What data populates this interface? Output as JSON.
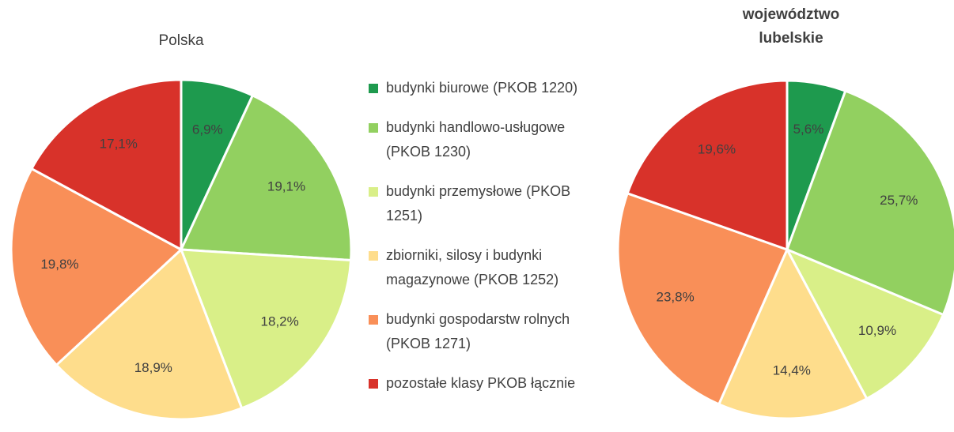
{
  "chart_data": [
    {
      "type": "pie",
      "title": "Polska",
      "categories": [
        "budynki biurowe (PKOB 1220)",
        "budynki handlowo-usługowe (PKOB 1230)",
        "budynki przemysłowe (PKOB 1251)",
        "zbiorniki, silosy i budynki magazynowe (PKOB 1252)",
        "budynki gospodarstw rolnych (PKOB 1271)",
        "pozostałe klasy PKOB łącznie"
      ],
      "colors": [
        "#1e9a4e",
        "#92d060",
        "#d9ef88",
        "#fedd8c",
        "#f98f58",
        "#d8322a"
      ],
      "values": [
        6.9,
        19.1,
        18.2,
        18.9,
        19.8,
        17.1
      ],
      "value_labels": [
        "6,9%",
        "19,1%",
        "18,2%",
        "18,9%",
        "19,8%",
        "17,1%"
      ]
    },
    {
      "type": "pie",
      "title": "województwo lubelskie",
      "values": [
        5.6,
        25.7,
        10.9,
        14.4,
        23.8,
        19.6
      ],
      "value_labels": [
        "5,6%",
        "25,7%",
        "10,9%",
        "14,4%",
        "23,8%",
        "19,6%"
      ]
    }
  ]
}
